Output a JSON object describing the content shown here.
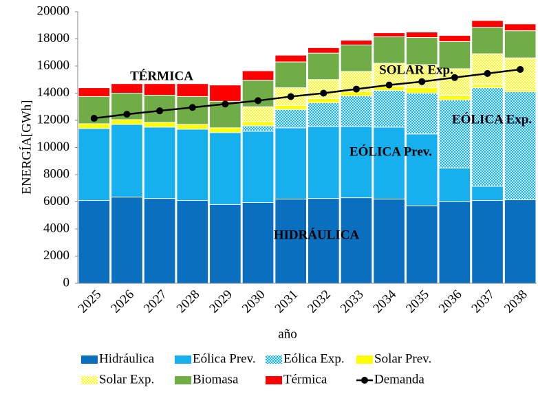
{
  "chart_data": {
    "type": "bar",
    "stacked": true,
    "y_label": "ENERGÍA[GWh]",
    "x_label": "año",
    "categories": [
      "2025",
      "2026",
      "2027",
      "2028",
      "2029",
      "2030",
      "2031",
      "2032",
      "2033",
      "2034",
      "2035",
      "2036",
      "2037",
      "2038"
    ],
    "ylim": [
      0,
      20000
    ],
    "yticks": [
      0,
      2000,
      4000,
      6000,
      8000,
      10000,
      12000,
      14000,
      16000,
      18000,
      20000
    ],
    "grid": false,
    "legend": "bottom",
    "series": [
      {
        "name": "Hidráulica",
        "color": "#0b6fc0",
        "values": [
          6100,
          6350,
          6250,
          6100,
          5800,
          5950,
          6200,
          6250,
          6300,
          6200,
          5700,
          6000,
          6100,
          6150
        ]
      },
      {
        "name": "Eólica Prev.",
        "color": "#16b0ef",
        "values": [
          5300,
          5350,
          5250,
          5250,
          5300,
          5250,
          5250,
          5300,
          5250,
          5300,
          5300,
          2500,
          1050,
          0
        ]
      },
      {
        "name": "Eólica Exp.",
        "color": "#16b0ef",
        "hatch": true,
        "values": [
          0,
          0,
          0,
          0,
          0,
          400,
          1350,
          1750,
          2250,
          2700,
          3000,
          5000,
          7250,
          7950
        ]
      },
      {
        "name": "Solar Prev.",
        "color": "#ffff00",
        "values": [
          350,
          350,
          350,
          350,
          350,
          300,
          300,
          300,
          300,
          300,
          400,
          300,
          200,
          150
        ]
      },
      {
        "name": "Solar Exp.",
        "color": "#ffff00",
        "hatch": true,
        "values": [
          0,
          0,
          0,
          0,
          0,
          1100,
          1300,
          1400,
          1500,
          1700,
          1700,
          2000,
          2300,
          2350
        ]
      },
      {
        "name": "Biomasa",
        "color": "#70ad47",
        "values": [
          2000,
          1950,
          2000,
          2050,
          1950,
          1950,
          1900,
          1950,
          1950,
          1950,
          2000,
          2000,
          1950,
          2000
        ]
      },
      {
        "name": "Térmica",
        "color": "#ff0000",
        "values": [
          650,
          700,
          850,
          950,
          1200,
          700,
          500,
          400,
          350,
          300,
          400,
          450,
          500,
          500
        ]
      },
      {
        "name": "Demanda",
        "color": "#000000",
        "type": "line",
        "values": [
          12150,
          12450,
          12700,
          12950,
          13200,
          13450,
          13750,
          14000,
          14300,
          14600,
          14850,
          15150,
          15450,
          15750
        ]
      }
    ],
    "annotations": [
      "TÉRMICA",
      "SOLAR Exp.",
      "EÓLICA Exp.",
      "EÓLICA Prev.",
      "HIDRÁULICA"
    ]
  }
}
